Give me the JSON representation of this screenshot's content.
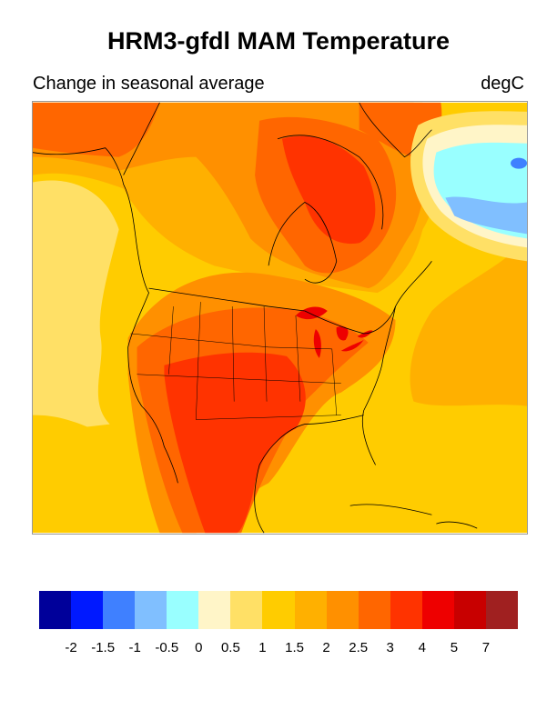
{
  "title": "HRM3-gfdl MAM Temperature",
  "left_subtitle": "Change in seasonal average",
  "right_subtitle": "degC",
  "colorbar": {
    "colors": [
      "#00009a",
      "#0019ff",
      "#3f80ff",
      "#80bfff",
      "#99ffff",
      "#fff5c8",
      "#ffe066",
      "#ffcc00",
      "#ffb000",
      "#ff9000",
      "#ff6600",
      "#ff3300",
      "#ee0000",
      "#c80000",
      "#a02020"
    ],
    "labels": [
      "-2",
      "-1.5",
      "-1",
      "-0.5",
      "0",
      "0.5",
      "1",
      "1.5",
      "2",
      "2.5",
      "3",
      "4",
      "5",
      "7"
    ]
  }
}
